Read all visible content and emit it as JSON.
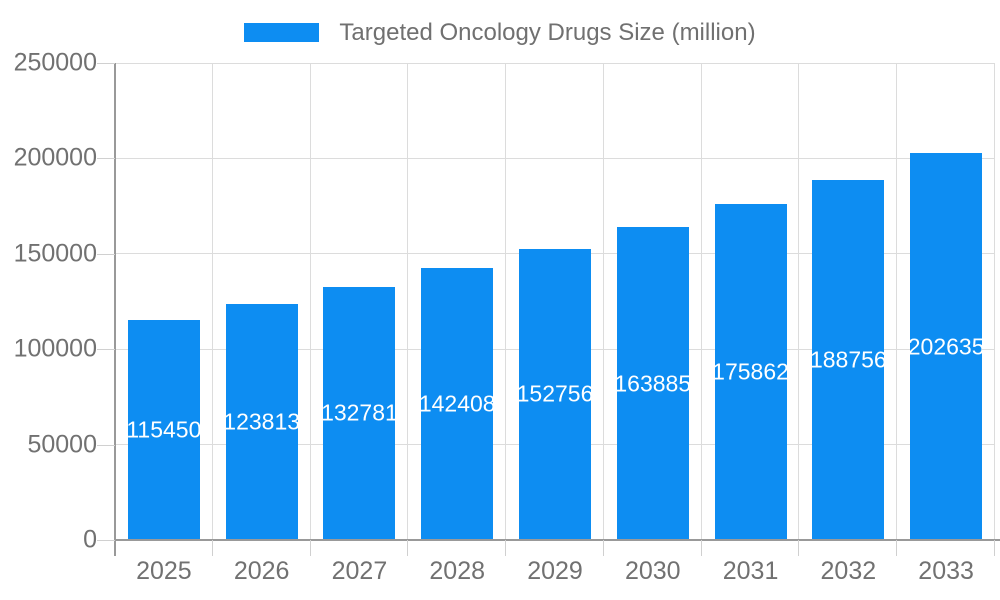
{
  "legend": {
    "label": "Targeted Oncology Drugs Size (million)",
    "swatch_color": "#0d8df2"
  },
  "chart_data": {
    "type": "bar",
    "title": "Targeted Oncology Drugs Size (million)",
    "categories": [
      "2025",
      "2026",
      "2027",
      "2028",
      "2029",
      "2030",
      "2031",
      "2032",
      "2033"
    ],
    "values": [
      115450,
      123813,
      132781,
      142408,
      152756,
      163885,
      175862,
      188756,
      202635
    ],
    "xlabel": "",
    "ylabel": "",
    "ylim": [
      0,
      250000
    ],
    "yticks": [
      0,
      50000,
      100000,
      150000,
      200000,
      250000
    ],
    "grid": true,
    "legend_position": "top-center",
    "bar_color": "#0d8df2",
    "bar_label_color": "#ffffff",
    "axis_text_color": "#717171",
    "gridline_color": "#dcdcdc",
    "axis_line_color": "#999999"
  }
}
